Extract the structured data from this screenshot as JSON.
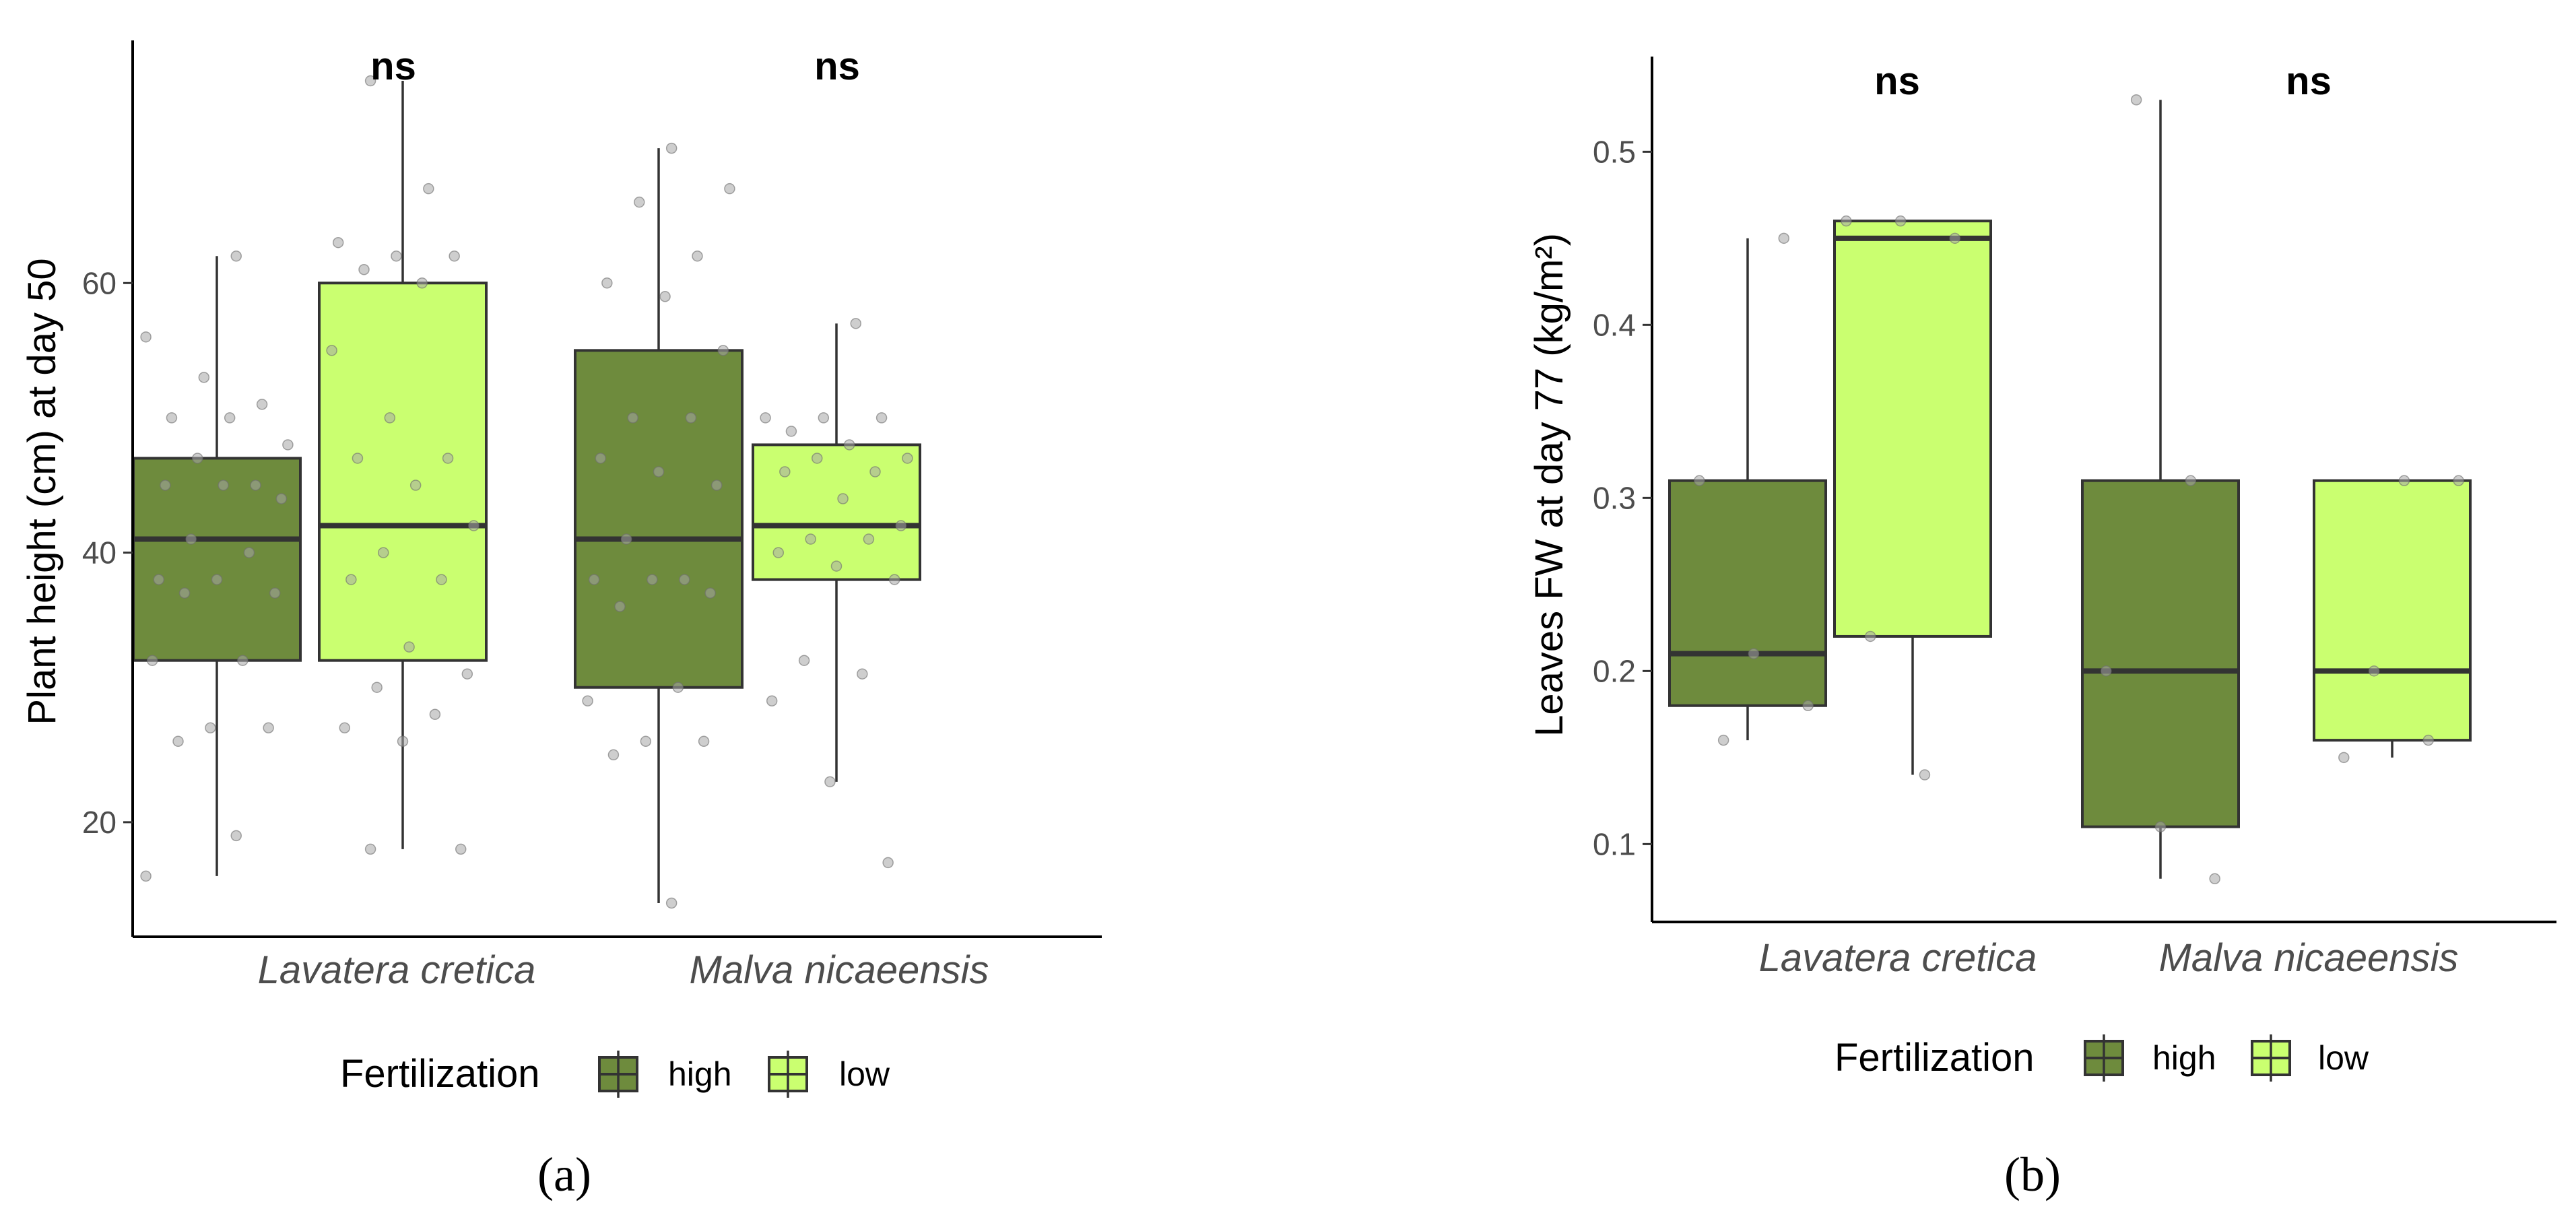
{
  "chart_data": [
    {
      "type": "box",
      "panel": "(a)",
      "ylabel": "Plant height (cm) at day 50",
      "ylim": [
        11.5,
        78
      ],
      "yticks": [
        20,
        40,
        60
      ],
      "categories": [
        "Lavatera cretica",
        "Malva nicaeensis"
      ],
      "significance": [
        "ns",
        "ns"
      ],
      "legend": {
        "title": "Fertilization",
        "entries": [
          "high",
          "low"
        ],
        "position": "bottom"
      },
      "colors": {
        "high": "#6e8b3d",
        "low": "#caff70"
      },
      "boxes": [
        {
          "category": "Lavatera cretica",
          "group": "high",
          "whisker_low": 16,
          "q1": 32,
          "median": 41,
          "q3": 47,
          "whisker_high": 62,
          "points": [
            16,
            19,
            26,
            27,
            27,
            32,
            32,
            37,
            37,
            38,
            38,
            40,
            41,
            44,
            45,
            45,
            45,
            47,
            48,
            50,
            50,
            51,
            53,
            56,
            62
          ]
        },
        {
          "category": "Lavatera cretica",
          "group": "low",
          "whisker_low": 18,
          "q1": 32,
          "median": 42,
          "q3": 60,
          "whisker_high": 75,
          "points": [
            18,
            18,
            26,
            27,
            28,
            30,
            31,
            33,
            38,
            38,
            40,
            42,
            45,
            47,
            47,
            50,
            55,
            60,
            61,
            62,
            62,
            63,
            67,
            75
          ]
        },
        {
          "category": "Malva nicaeensis",
          "group": "high",
          "whisker_low": 14,
          "q1": 30,
          "median": 41,
          "q3": 55,
          "whisker_high": 70,
          "points": [
            14,
            25,
            26,
            26,
            29,
            30,
            36,
            37,
            38,
            38,
            38,
            41,
            45,
            46,
            47,
            50,
            50,
            55,
            59,
            60,
            62,
            66,
            67,
            70
          ]
        },
        {
          "category": "Malva nicaeensis",
          "group": "low",
          "whisker_low": 23,
          "q1": 38,
          "median": 42,
          "q3": 48,
          "whisker_high": 57,
          "points": [
            17,
            23,
            29,
            31,
            32,
            38,
            39,
            40,
            41,
            41,
            42,
            44,
            46,
            46,
            47,
            47,
            48,
            49,
            50,
            50,
            50,
            57
          ]
        }
      ]
    },
    {
      "type": "box",
      "panel": "(b)",
      "ylabel": "Leaves FW at day 77 (kg/m²)",
      "ylim": [
        0.055,
        0.555
      ],
      "yticks": [
        0.1,
        0.2,
        0.3,
        0.4,
        0.5
      ],
      "categories": [
        "Lavatera cretica",
        "Malva nicaeensis"
      ],
      "significance": [
        "ns",
        "ns"
      ],
      "legend": {
        "title": "Fertilization",
        "entries": [
          "high",
          "low"
        ],
        "position": "bottom"
      },
      "colors": {
        "high": "#6e8b3d",
        "low": "#caff70"
      },
      "boxes": [
        {
          "category": "Lavatera cretica",
          "group": "high",
          "whisker_low": 0.16,
          "q1": 0.18,
          "median": 0.21,
          "q3": 0.31,
          "whisker_high": 0.45,
          "points": [
            0.16,
            0.18,
            0.21,
            0.31,
            0.45
          ]
        },
        {
          "category": "Lavatera cretica",
          "group": "low",
          "whisker_low": 0.14,
          "q1": 0.22,
          "median": 0.45,
          "q3": 0.46,
          "whisker_high": 0.46,
          "points": [
            0.14,
            0.22,
            0.45,
            0.46,
            0.46
          ]
        },
        {
          "category": "Malva nicaeensis",
          "group": "high",
          "whisker_low": 0.08,
          "q1": 0.11,
          "median": 0.2,
          "q3": 0.31,
          "whisker_high": 0.53,
          "points": [
            0.08,
            0.11,
            0.2,
            0.31,
            0.53
          ]
        },
        {
          "category": "Malva nicaeensis",
          "group": "low",
          "whisker_low": 0.15,
          "q1": 0.16,
          "median": 0.2,
          "q3": 0.31,
          "whisker_high": 0.31,
          "points": [
            0.15,
            0.16,
            0.2,
            0.31,
            0.31
          ]
        }
      ]
    }
  ]
}
